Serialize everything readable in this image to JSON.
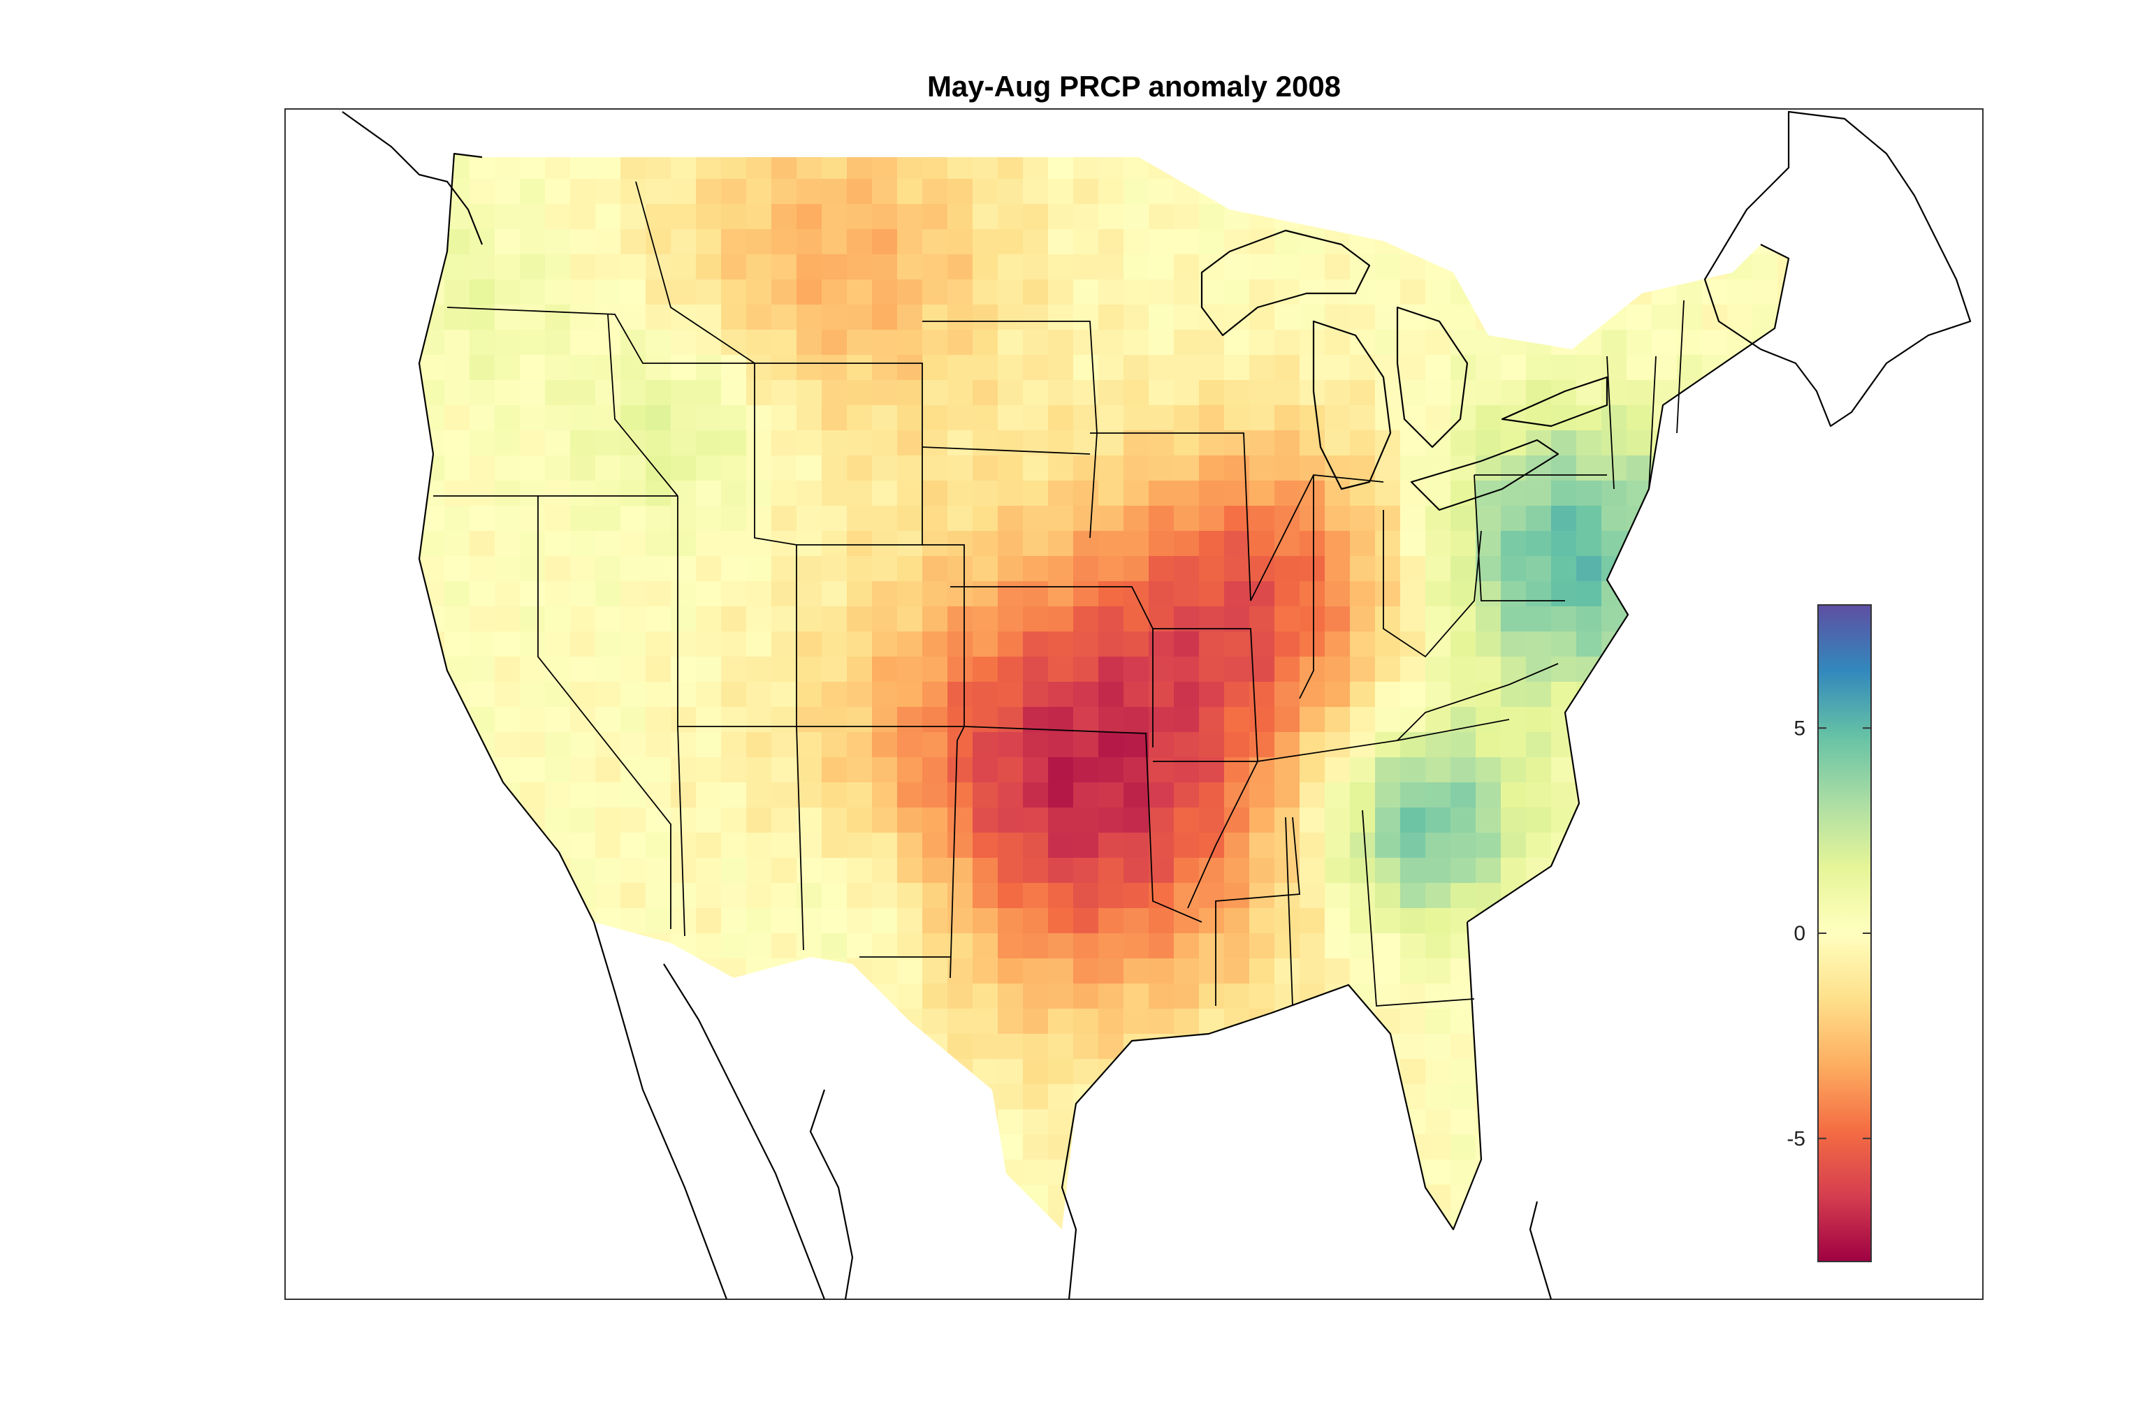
{
  "figure": {
    "title": "May-Aug PRCP anomaly 2008"
  },
  "chart_data": {
    "type": "heatmap",
    "title": "May-Aug PRCP anomaly 2008",
    "xlabel": "",
    "ylabel": "",
    "colormap": "spectral (red = dry, yellow = neutral, blue = wet)",
    "colorbar": {
      "placement": "right-inside",
      "clim": [
        -8,
        8
      ],
      "ticks": [
        -5,
        0,
        5
      ],
      "tick_labels": [
        "-5",
        "0",
        "5"
      ],
      "color_stops": [
        "#9e0142",
        "#d53e4f",
        "#f46d43",
        "#fdae61",
        "#fee08b",
        "#ffffbf",
        "#e6f598",
        "#abdda4",
        "#66c2a5",
        "#3288bd",
        "#5e4fa2"
      ]
    },
    "region": "Contiguous United States",
    "anomaly_features": [
      {
        "area": "Northern Plains / Montana",
        "sign": "dry",
        "approx_value": -3
      },
      {
        "area": "Southern Plains, Oklahoma and eastern Texas",
        "sign": "dry",
        "approx_value": -7
      },
      {
        "area": "Missouri / Ohio Valley",
        "sign": "dry",
        "approx_value": -4
      },
      {
        "area": "Mid-Atlantic / Pennsylvania and New York",
        "sign": "wet",
        "approx_value": 5
      },
      {
        "area": "Southern Appalachians / Georgia",
        "sign": "wet",
        "approx_value": 5
      },
      {
        "area": "Northern Rockies / Idaho",
        "sign": "wet",
        "approx_value": 2
      },
      {
        "area": "Arizona / New Mexico",
        "sign": "wet",
        "approx_value": 2
      },
      {
        "area": "Pacific Northwest",
        "sign": "wet",
        "approx_value": 1
      }
    ]
  }
}
